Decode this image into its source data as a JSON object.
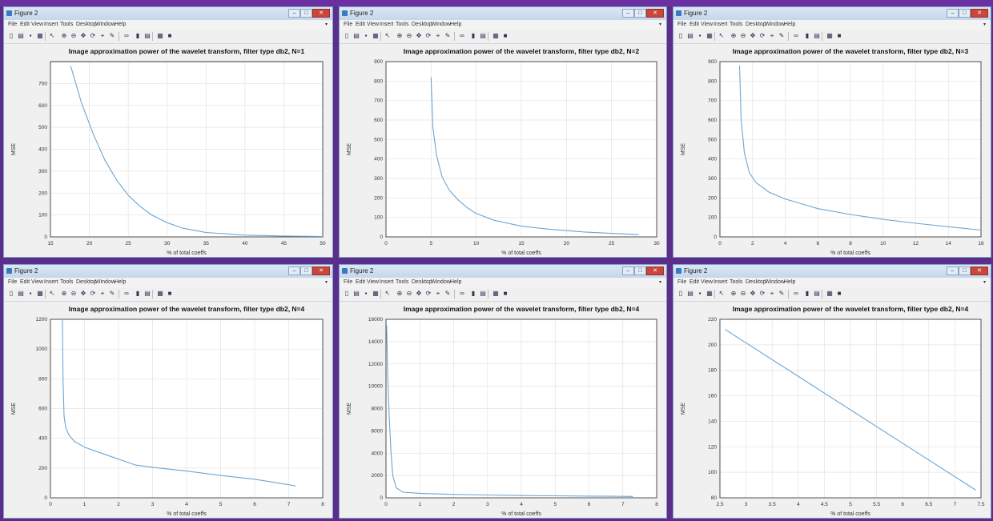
{
  "window_title": "Figure 2",
  "menu": [
    "File",
    "Edit",
    "View",
    "Insert",
    "Tools",
    "Desktop",
    "Window",
    "Help"
  ],
  "toolbar_icons": [
    "new-file-icon",
    "open-folder-icon",
    "save-icon",
    "print-icon",
    "pointer-icon",
    "zoom-in-icon",
    "zoom-out-icon",
    "pan-icon",
    "rotate-icon",
    "data-cursor-icon",
    "brush-icon",
    "link-icon",
    "colorbar-icon",
    "legend-icon",
    "grid-icon",
    "property-icon"
  ],
  "colors": {
    "line": "#6aa6d6",
    "title_bar": "#c5d7ec",
    "close_button": "#c9483b"
  },
  "figures": [
    {
      "title": "Image approximation power of the wavelet transform, filter type db2, N=1",
      "xlabel": "% of total coeffs",
      "ylabel": "MSE",
      "chart_data": {
        "type": "line",
        "xlim": [
          15,
          50
        ],
        "ylim": [
          0,
          800
        ],
        "xticks": [
          15,
          20,
          25,
          30,
          35,
          40,
          45,
          50
        ],
        "yticks": [
          0,
          100,
          200,
          300,
          400,
          500,
          600,
          700
        ],
        "x": [
          17.6,
          19,
          20.5,
          22,
          23.5,
          25,
          26.5,
          28,
          30,
          32,
          35,
          40,
          45,
          50
        ],
        "y": [
          780,
          610,
          470,
          350,
          260,
          190,
          140,
          100,
          65,
          40,
          20,
          8,
          4,
          2
        ]
      }
    },
    {
      "title": "Image approximation power of the wavelet transform, filter type db2, N=2",
      "xlabel": "% of total coeffs",
      "ylabel": "MSE",
      "chart_data": {
        "type": "line",
        "xlim": [
          0,
          30
        ],
        "ylim": [
          0,
          900
        ],
        "xticks": [
          0,
          5,
          10,
          15,
          20,
          25,
          30
        ],
        "yticks": [
          0,
          100,
          200,
          300,
          400,
          500,
          600,
          700,
          800,
          900
        ],
        "x": [
          5,
          5.2,
          5.6,
          6.2,
          7,
          8,
          9,
          10,
          12,
          15,
          18,
          22,
          25,
          28
        ],
        "y": [
          820,
          560,
          420,
          310,
          240,
          190,
          150,
          120,
          85,
          55,
          40,
          25,
          18,
          12
        ]
      }
    },
    {
      "title": "Image approximation power of the wavelet transform, filter type db2, N=3",
      "xlabel": "% of total coeffs",
      "ylabel": "MSE",
      "chart_data": {
        "type": "line",
        "xlim": [
          0,
          16
        ],
        "ylim": [
          0,
          900
        ],
        "xticks": [
          0,
          2,
          4,
          6,
          8,
          10,
          12,
          14,
          16
        ],
        "yticks": [
          0,
          100,
          200,
          300,
          400,
          500,
          600,
          700,
          800,
          900
        ],
        "x": [
          1.2,
          1.3,
          1.5,
          1.8,
          2.2,
          3,
          4,
          5,
          6,
          8,
          10,
          12,
          14,
          16
        ],
        "y": [
          880,
          600,
          430,
          330,
          280,
          230,
          195,
          170,
          145,
          115,
          90,
          70,
          52,
          35
        ]
      }
    },
    {
      "title": "Image approximation power of the wavelet transform, filter type db2, N=4",
      "xlabel": "% of total coeffs",
      "ylabel": "MSE",
      "chart_data": {
        "type": "line",
        "xlim": [
          0,
          8
        ],
        "ylim": [
          0,
          1200
        ],
        "xticks": [
          0,
          1,
          2,
          3,
          4,
          5,
          6,
          7,
          8
        ],
        "yticks": [
          0,
          200,
          400,
          600,
          800,
          1000,
          1200
        ],
        "x": [
          0.35,
          0.37,
          0.4,
          0.45,
          0.55,
          0.7,
          1,
          1.5,
          2,
          2.5,
          3,
          4,
          5,
          6,
          7.2
        ],
        "y": [
          1200,
          800,
          550,
          470,
          420,
          380,
          340,
          300,
          260,
          220,
          205,
          180,
          150,
          125,
          80
        ]
      }
    },
    {
      "title": "Image approximation power of the wavelet transform, filter type db2, N=4",
      "xlabel": "% of total coeffs",
      "ylabel": "MSE",
      "chart_data": {
        "type": "line",
        "xlim": [
          0,
          8
        ],
        "ylim": [
          0,
          16000
        ],
        "xticks": [
          0,
          1,
          2,
          3,
          4,
          5,
          6,
          7,
          8
        ],
        "yticks": [
          0,
          2000,
          4000,
          6000,
          8000,
          10000,
          12000,
          14000,
          16000
        ],
        "x": [
          0.02,
          0.05,
          0.1,
          0.15,
          0.2,
          0.3,
          0.5,
          1,
          2,
          3,
          4,
          5,
          6,
          7.3
        ],
        "y": [
          15500,
          11000,
          7000,
          4000,
          2000,
          900,
          500,
          400,
          300,
          250,
          200,
          180,
          150,
          120
        ]
      }
    },
    {
      "title": "Image approximation power of the wavelet transform, filter type db2, N=4",
      "xlabel": "% of total coeffs",
      "ylabel": "MSE",
      "chart_data": {
        "type": "line",
        "xlim": [
          2.5,
          7.5
        ],
        "ylim": [
          80,
          220
        ],
        "xticks": [
          2.5,
          3,
          3.5,
          4,
          4.5,
          5,
          5.5,
          6,
          6.5,
          7,
          7.5
        ],
        "yticks": [
          80,
          100,
          120,
          140,
          160,
          180,
          200,
          220
        ],
        "x": [
          2.6,
          7.4
        ],
        "y": [
          212,
          86
        ]
      }
    }
  ]
}
